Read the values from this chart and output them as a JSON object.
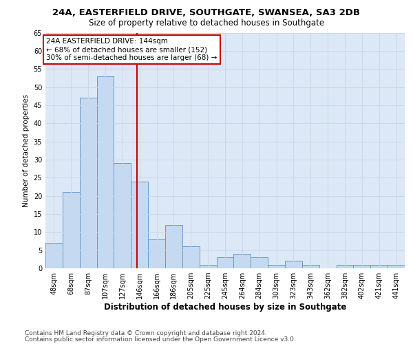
{
  "title1": "24A, EASTERFIELD DRIVE, SOUTHGATE, SWANSEA, SA3 2DB",
  "title2": "Size of property relative to detached houses in Southgate",
  "xlabel": "Distribution of detached houses by size in Southgate",
  "ylabel": "Number of detached properties",
  "categories": [
    "48sqm",
    "68sqm",
    "87sqm",
    "107sqm",
    "127sqm",
    "146sqm",
    "166sqm",
    "186sqm",
    "205sqm",
    "225sqm",
    "245sqm",
    "264sqm",
    "284sqm",
    "303sqm",
    "323sqm",
    "343sqm",
    "362sqm",
    "382sqm",
    "402sqm",
    "421sqm",
    "441sqm"
  ],
  "values": [
    7,
    21,
    47,
    53,
    29,
    24,
    8,
    12,
    6,
    1,
    3,
    4,
    3,
    1,
    2,
    1,
    0,
    1,
    1,
    1,
    1
  ],
  "bar_color": "#c5d9f0",
  "bar_edge_color": "#6699cc",
  "vline_x": 4.85,
  "vline_color": "#cc0000",
  "annotation_text": "24A EASTERFIELD DRIVE: 144sqm\n← 68% of detached houses are smaller (152)\n30% of semi-detached houses are larger (68) →",
  "annotation_box_color": "#ffffff",
  "annotation_box_edge": "#cc0000",
  "ylim": [
    0,
    65
  ],
  "yticks": [
    0,
    5,
    10,
    15,
    20,
    25,
    30,
    35,
    40,
    45,
    50,
    55,
    60,
    65
  ],
  "grid_color": "#c8d8ec",
  "background_color": "#dce8f5",
  "fig_background": "#ffffff",
  "footer1": "Contains HM Land Registry data © Crown copyright and database right 2024.",
  "footer2": "Contains public sector information licensed under the Open Government Licence v3.0.",
  "title1_fontsize": 9.5,
  "title2_fontsize": 8.5,
  "xlabel_fontsize": 8.5,
  "ylabel_fontsize": 7.5,
  "tick_fontsize": 7,
  "annotation_fontsize": 7.5,
  "footer_fontsize": 6.5
}
